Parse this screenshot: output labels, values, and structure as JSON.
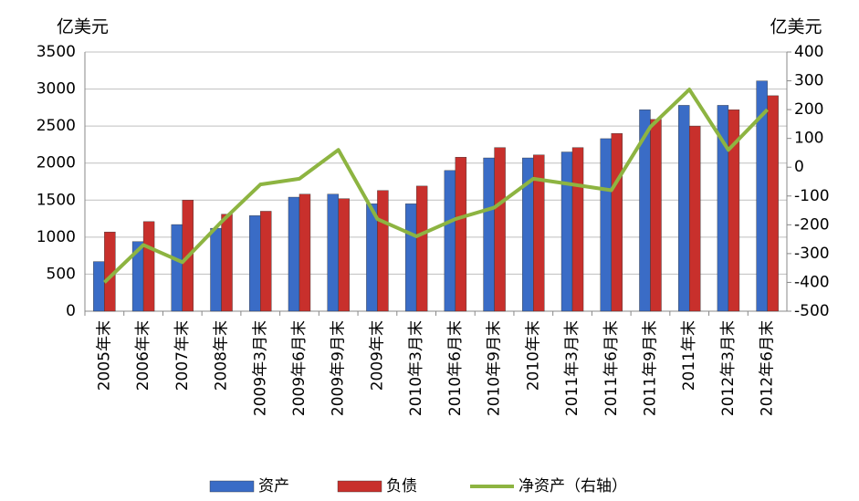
{
  "chart_data": {
    "type": "bar",
    "y_unit": "亿美元",
    "y2_unit": "亿美元",
    "categories": [
      "2005年末",
      "2006年末",
      "2007年末",
      "2008年末",
      "2009年3月末",
      "2009年6月末",
      "2009年9月末",
      "2009年末",
      "2010年3月末",
      "2010年6月末",
      "2010年9月末",
      "2010年末",
      "2011年3月末",
      "2011年6月末",
      "2011年9月末",
      "2011年末",
      "2012年3月末",
      "2012年6月末"
    ],
    "series": [
      {
        "name": "资产",
        "type": "bar",
        "color": "#3a6cc6",
        "values": [
          670,
          940,
          1170,
          1120,
          1290,
          1540,
          1580,
          1450,
          1450,
          1900,
          2070,
          2070,
          2150,
          2330,
          2720,
          2780,
          2780,
          3110
        ]
      },
      {
        "name": "负债",
        "type": "bar",
        "color": "#c8302c",
        "values": [
          1070,
          1210,
          1500,
          1310,
          1350,
          1580,
          1520,
          1630,
          1690,
          2080,
          2210,
          2110,
          2210,
          2400,
          2590,
          2500,
          2720,
          2910
        ]
      },
      {
        "name": "净资产（右轴）",
        "type": "line",
        "axis": "y2",
        "color": "#8db441",
        "values": [
          -400,
          -270,
          -330,
          -190,
          -60,
          -40,
          60,
          -180,
          -240,
          -180,
          -140,
          -40,
          -60,
          -80,
          140,
          270,
          60,
          200
        ]
      }
    ],
    "ylim": [
      0,
      3500
    ],
    "yticks": [
      0,
      500,
      1000,
      1500,
      2000,
      2500,
      3000,
      3500
    ],
    "y2lim": [
      -500,
      400
    ],
    "y2ticks": [
      -500,
      -400,
      -300,
      -200,
      -100,
      0,
      100,
      200,
      300,
      400
    ],
    "grid": true,
    "legend": "bottom"
  }
}
